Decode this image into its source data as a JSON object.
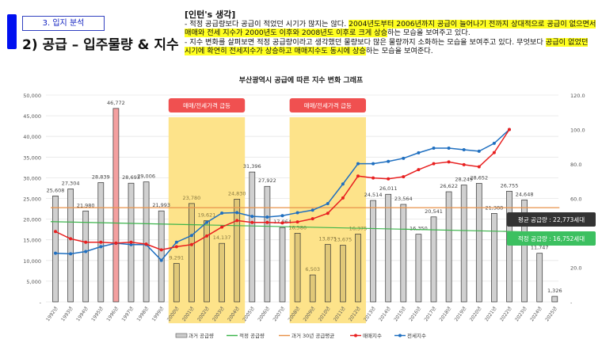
{
  "header": {
    "section": "3. 입지 분석",
    "title": "2) 공급 – 입주물량 & 지수"
  },
  "note": {
    "heading": "[인턴's 생각]",
    "p1a": "- 적정 공급량보다 공급이 적었던 시기가 많지는 않다. ",
    "p1b": "2004년도부터 2006년까지 공급이 늘어나기 전까지 상대적으로 공급이 없으면서 매매와 전세 지수가 2000년도 이후와 2008년도 이후로 크게 상승",
    "p1c": "하는 모습을 보여주고 있다.",
    "p2a": "- 지수 변화를 살펴보면 적정 공급량이라고 생각했던 물량보다 많은 물량까지 소화하는 모습을 보여주고 있다. 무엇보다 ",
    "p2b": "공급이 없었던 시기에 확연히 전세지수가 상승하고 매매지수도 동시에 상승",
    "p2c": "하는 모습을 보여준다."
  },
  "chart_data": {
    "type": "bar",
    "title": "부산광역시 공급에 따른 지수 변화 그래프",
    "categories": [
      "1992년",
      "1993년",
      "1994년",
      "1995년",
      "1996년",
      "1997년",
      "1998년",
      "1999년",
      "2000년",
      "2001년",
      "2002년",
      "2003년",
      "2004년",
      "2005년",
      "2006년",
      "2007년",
      "2008년",
      "2009년",
      "2010년",
      "2011년",
      "2012년",
      "2013년",
      "2014년",
      "2015년",
      "2016년",
      "2017년",
      "2018년",
      "2019년",
      "2020년",
      "2021년",
      "2022년",
      "2023년",
      "2024년",
      "2025년"
    ],
    "supply": {
      "name": "과거 공급량",
      "values": [
        25608,
        27304,
        21980,
        28839,
        46772,
        28693,
        29006,
        21993,
        9291,
        23780,
        19621,
        14137,
        24830,
        31396,
        27922,
        17964,
        16586,
        6503,
        13875,
        13675,
        16375,
        24514,
        26011,
        23564,
        16350,
        20541,
        26622,
        28249,
        28652,
        21388,
        26755,
        24648,
        11747,
        1326
      ],
      "labels": [
        "25,608",
        "27,304",
        "21,980",
        "28,839",
        "46,772",
        "28,693",
        "29,006",
        "21,993",
        "9,291",
        "23,780",
        "19,621",
        "14,137",
        "24,830",
        "31,396",
        "27,922",
        "17,964",
        "16,586",
        "6,503",
        "13,875",
        "13,675",
        "16,375",
        "24,514",
        "26,011",
        "23,564",
        "16,350",
        "20,541",
        "26,622",
        "28,249",
        "28,652",
        "21,388",
        "26,755",
        "24,648",
        "11,747",
        "1,326"
      ]
    },
    "appropriate": {
      "name": "적정 공급량",
      "start": 19400,
      "end": 16752
    },
    "average": {
      "name": "과거 30년 공급평균",
      "value": 22773
    },
    "sale_index": {
      "name": "매매지수",
      "values": [
        40.8,
        36.6,
        34.6,
        34.6,
        34.1,
        34.6,
        33.5,
        30.2,
        32,
        33.2,
        38.2,
        43.4,
        47.2,
        46.1,
        46.1,
        45.8,
        46.4,
        48.2,
        51.4,
        60.3,
        73,
        71.9,
        71.4,
        72.6,
        76.7,
        80.2,
        81.2,
        79.6,
        78.4,
        86.6,
        100
      ]
    },
    "jeonse_index": {
      "name": "전세지수",
      "values": [
        28.2,
        27.9,
        29.2,
        32,
        34,
        33.2,
        33.2,
        24.1,
        34.6,
        38.5,
        46.1,
        51.5,
        51.8,
        49.6,
        49.2,
        50,
        51.7,
        53.2,
        57,
        68.4,
        80.2,
        80.2,
        81.5,
        83.3,
        86.5,
        89.2,
        89.2,
        88.3,
        87.4,
        92,
        100
      ]
    },
    "y_left": {
      "range": [
        0,
        50000
      ],
      "ticks": [
        "-",
        "5,000",
        "10,000",
        "15,000",
        "20,000",
        "25,000",
        "30,000",
        "35,000",
        "40,000",
        "45,000",
        "50,000"
      ]
    },
    "y_right": {
      "range": [
        0,
        120
      ],
      "ticks": [
        "-",
        "20.0",
        "40.0",
        "60.0",
        "80.0",
        "100.0",
        "120.0"
      ]
    },
    "bands": [
      {
        "from": "2000년",
        "to": "2004년",
        "label": "매매/전세가격 급등"
      },
      {
        "from": "2008년",
        "to": "2012년",
        "label": "매매/전세가격 급등"
      }
    ],
    "callouts": {
      "average": "평균 공급량 : 22,773세대",
      "appropriate": "적정 공급량 : 16,752세대"
    },
    "colors": {
      "bar": "#d0d0d0",
      "bar_peak": "#f4a0a0",
      "bar_band": "#e0c878",
      "band": "#fde38a",
      "sale": "#e82020",
      "jeonse": "#1f6fc0",
      "appropriate": "#3cb44b",
      "average": "#e8924a"
    }
  }
}
